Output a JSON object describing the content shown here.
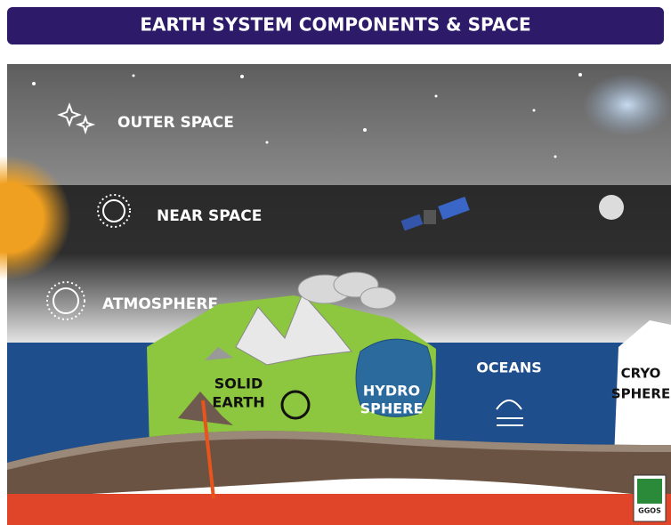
{
  "header": {
    "title": "EARTH SYSTEM COMPONENTS & SPACE"
  },
  "layers": [
    {
      "label": "OUTER SPACE"
    },
    {
      "label": "NEAR SPACE"
    },
    {
      "label": "ATMOSPHERE"
    }
  ],
  "components": [
    {
      "label_lines": [
        "SOLID",
        "EARTH"
      ]
    },
    {
      "label_lines": [
        "HYDRO",
        "SPHERE"
      ]
    },
    {
      "label_lines": [
        "OCEANS"
      ]
    },
    {
      "label_lines": [
        "CRYO",
        "SPHERE"
      ]
    }
  ],
  "logo": {
    "text": "GGOS"
  }
}
